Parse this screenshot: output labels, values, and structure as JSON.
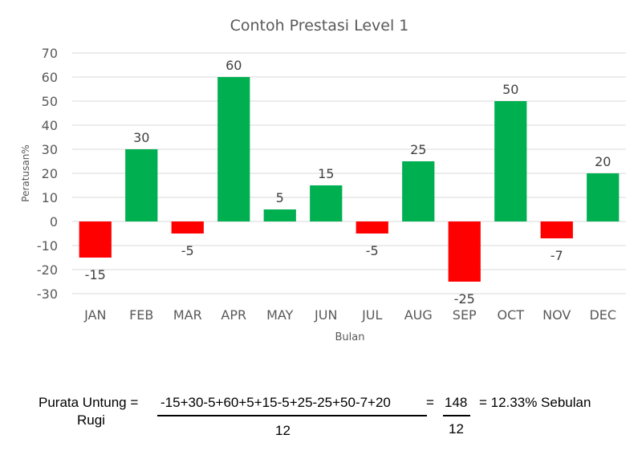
{
  "chart_data": {
    "type": "bar",
    "title": "Contoh Prestasi Level 1",
    "xlabel": "Bulan",
    "ylabel": "Peratusan%",
    "categories": [
      "JAN",
      "FEB",
      "MAR",
      "APR",
      "MAY",
      "JUN",
      "JUL",
      "AUG",
      "SEP",
      "OCT",
      "NOV",
      "DEC"
    ],
    "values": [
      -15,
      30,
      -5,
      60,
      5,
      15,
      -5,
      25,
      -25,
      50,
      -7,
      20
    ],
    "ylim": [
      -30,
      70
    ],
    "yticks": [
      70,
      60,
      50,
      40,
      30,
      20,
      10,
      0,
      -10,
      -20,
      -30
    ],
    "grid": true,
    "legend": "none",
    "colors": {
      "positive": "#00b050",
      "negative": "#ff0000",
      "grid": "#d9d9d9",
      "text": "#595959"
    }
  },
  "formula": {
    "lhs_line1": "Purata Untung =",
    "lhs_line2": "Rugi",
    "numerator": "-15+30-5+60+5+15-5+25-25+50-7+20",
    "denominator": "12",
    "eq": "=",
    "numerator2": "148",
    "denominator2": "12",
    "result": "= 12.33% Sebulan"
  }
}
